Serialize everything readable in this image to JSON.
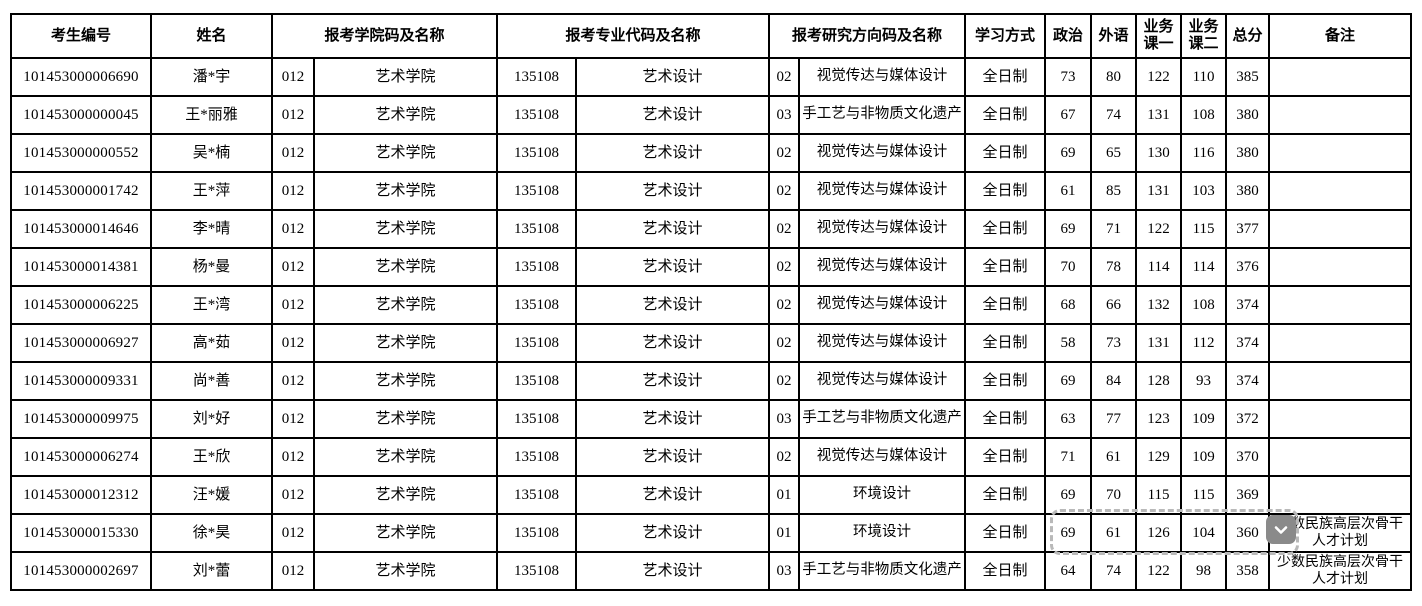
{
  "table": {
    "headers": {
      "candidate_id": "考生编号",
      "name": "姓名",
      "college": "报考学院码及名称",
      "major": "报考专业代码及名称",
      "direction": "报考研究方向码及名称",
      "study_mode": "学习方式",
      "politics": "政治",
      "foreign_language": "外语",
      "course1": "业务\n课一",
      "course2": "业务\n课二",
      "total": "总分",
      "remark": "备注"
    },
    "rows": [
      {
        "candidate_id": "101453000006690",
        "name": "潘*宇",
        "college_code": "012",
        "college_name": "艺术学院",
        "major_code": "135108",
        "major_name": "艺术设计",
        "direction_code": "02",
        "direction_name": "视觉传达与媒体设计",
        "study_mode": "全日制",
        "politics": "73",
        "foreign_language": "80",
        "course1": "122",
        "course2": "110",
        "total": "385",
        "remark": ""
      },
      {
        "candidate_id": "101453000000045",
        "name": "王*丽雅",
        "college_code": "012",
        "college_name": "艺术学院",
        "major_code": "135108",
        "major_name": "艺术设计",
        "direction_code": "03",
        "direction_name": "手工艺与非物质文化遗产",
        "study_mode": "全日制",
        "politics": "67",
        "foreign_language": "74",
        "course1": "131",
        "course2": "108",
        "total": "380",
        "remark": ""
      },
      {
        "candidate_id": "101453000000552",
        "name": "吴*楠",
        "college_code": "012",
        "college_name": "艺术学院",
        "major_code": "135108",
        "major_name": "艺术设计",
        "direction_code": "02",
        "direction_name": "视觉传达与媒体设计",
        "study_mode": "全日制",
        "politics": "69",
        "foreign_language": "65",
        "course1": "130",
        "course2": "116",
        "total": "380",
        "remark": ""
      },
      {
        "candidate_id": "101453000001742",
        "name": "王*萍",
        "college_code": "012",
        "college_name": "艺术学院",
        "major_code": "135108",
        "major_name": "艺术设计",
        "direction_code": "02",
        "direction_name": "视觉传达与媒体设计",
        "study_mode": "全日制",
        "politics": "61",
        "foreign_language": "85",
        "course1": "131",
        "course2": "103",
        "total": "380",
        "remark": ""
      },
      {
        "candidate_id": "101453000014646",
        "name": "李*晴",
        "college_code": "012",
        "college_name": "艺术学院",
        "major_code": "135108",
        "major_name": "艺术设计",
        "direction_code": "02",
        "direction_name": "视觉传达与媒体设计",
        "study_mode": "全日制",
        "politics": "69",
        "foreign_language": "71",
        "course1": "122",
        "course2": "115",
        "total": "377",
        "remark": ""
      },
      {
        "candidate_id": "101453000014381",
        "name": "杨*曼",
        "college_code": "012",
        "college_name": "艺术学院",
        "major_code": "135108",
        "major_name": "艺术设计",
        "direction_code": "02",
        "direction_name": "视觉传达与媒体设计",
        "study_mode": "全日制",
        "politics": "70",
        "foreign_language": "78",
        "course1": "114",
        "course2": "114",
        "total": "376",
        "remark": ""
      },
      {
        "candidate_id": "101453000006225",
        "name": "王*湾",
        "college_code": "012",
        "college_name": "艺术学院",
        "major_code": "135108",
        "major_name": "艺术设计",
        "direction_code": "02",
        "direction_name": "视觉传达与媒体设计",
        "study_mode": "全日制",
        "politics": "68",
        "foreign_language": "66",
        "course1": "132",
        "course2": "108",
        "total": "374",
        "remark": ""
      },
      {
        "candidate_id": "101453000006927",
        "name": "高*茹",
        "college_code": "012",
        "college_name": "艺术学院",
        "major_code": "135108",
        "major_name": "艺术设计",
        "direction_code": "02",
        "direction_name": "视觉传达与媒体设计",
        "study_mode": "全日制",
        "politics": "58",
        "foreign_language": "73",
        "course1": "131",
        "course2": "112",
        "total": "374",
        "remark": ""
      },
      {
        "candidate_id": "101453000009331",
        "name": "尚*善",
        "college_code": "012",
        "college_name": "艺术学院",
        "major_code": "135108",
        "major_name": "艺术设计",
        "direction_code": "02",
        "direction_name": "视觉传达与媒体设计",
        "study_mode": "全日制",
        "politics": "69",
        "foreign_language": "84",
        "course1": "128",
        "course2": "93",
        "total": "374",
        "remark": ""
      },
      {
        "candidate_id": "101453000009975",
        "name": "刘*好",
        "college_code": "012",
        "college_name": "艺术学院",
        "major_code": "135108",
        "major_name": "艺术设计",
        "direction_code": "03",
        "direction_name": "手工艺与非物质文化遗产",
        "study_mode": "全日制",
        "politics": "63",
        "foreign_language": "77",
        "course1": "123",
        "course2": "109",
        "total": "372",
        "remark": ""
      },
      {
        "candidate_id": "101453000006274",
        "name": "王*欣",
        "college_code": "012",
        "college_name": "艺术学院",
        "major_code": "135108",
        "major_name": "艺术设计",
        "direction_code": "02",
        "direction_name": "视觉传达与媒体设计",
        "study_mode": "全日制",
        "politics": "71",
        "foreign_language": "61",
        "course1": "129",
        "course2": "109",
        "total": "370",
        "remark": ""
      },
      {
        "candidate_id": "101453000012312",
        "name": "汪*媛",
        "college_code": "012",
        "college_name": "艺术学院",
        "major_code": "135108",
        "major_name": "艺术设计",
        "direction_code": "01",
        "direction_name": "环境设计",
        "study_mode": "全日制",
        "politics": "69",
        "foreign_language": "70",
        "course1": "115",
        "course2": "115",
        "total": "369",
        "remark": ""
      },
      {
        "candidate_id": "101453000015330",
        "name": "徐*昊",
        "college_code": "012",
        "college_name": "艺术学院",
        "major_code": "135108",
        "major_name": "艺术设计",
        "direction_code": "01",
        "direction_name": "环境设计",
        "study_mode": "全日制",
        "politics": "69",
        "foreign_language": "61",
        "course1": "126",
        "course2": "104",
        "total": "360",
        "remark": "少数民族高层次骨干人才计划"
      },
      {
        "candidate_id": "101453000002697",
        "name": "刘*蕾",
        "college_code": "012",
        "college_name": "艺术学院",
        "major_code": "135108",
        "major_name": "艺术设计",
        "direction_code": "03",
        "direction_name": "手工艺与非物质文化遗产",
        "study_mode": "全日制",
        "politics": "64",
        "foreign_language": "74",
        "course1": "122",
        "course2": "98",
        "total": "358",
        "remark": "少数民族高层次骨干人才计划"
      }
    ]
  },
  "overlay": {
    "selection_row_index": 12,
    "button_icon": "chevron-down",
    "button_color": "#8a8a8a",
    "marquee_color": "#b9b9b9"
  }
}
